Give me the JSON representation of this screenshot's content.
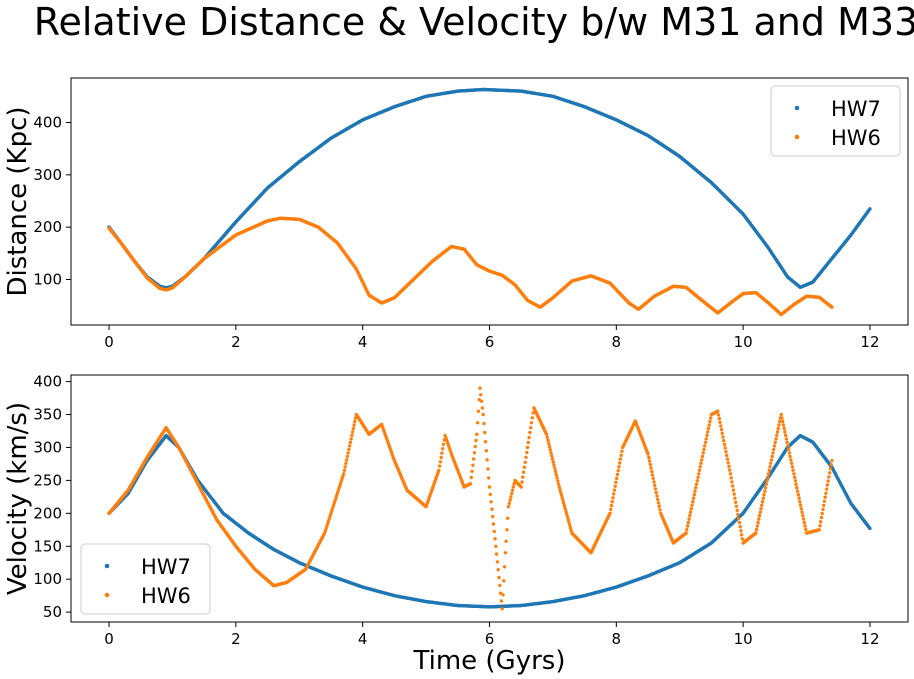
{
  "title": "Relative Distance & Velocity b/w M31 and M33",
  "colors": {
    "HW7": "#1f77b4",
    "HW6": "#ff7f0e"
  },
  "chart_data": [
    {
      "type": "scatter",
      "ylabel": "Distance (Kpc)",
      "xlabel": "",
      "xlim": [
        -0.6,
        12.6
      ],
      "ylim": [
        13,
        485
      ],
      "xticks": [
        "0",
        "2",
        "4",
        "6",
        "8",
        "10",
        "12"
      ],
      "yticks": [
        "100",
        "200",
        "300",
        "400"
      ],
      "legend_position": "top-right",
      "series": [
        {
          "name": "HW7",
          "points": [
            [
              0.0,
              200
            ],
            [
              0.2,
              168
            ],
            [
              0.4,
              135
            ],
            [
              0.6,
              105
            ],
            [
              0.8,
              87
            ],
            [
              0.9,
              84
            ],
            [
              1.0,
              87
            ],
            [
              1.2,
              105
            ],
            [
              1.5,
              140
            ],
            [
              2.0,
              210
            ],
            [
              2.5,
              275
            ],
            [
              3.0,
              325
            ],
            [
              3.5,
              370
            ],
            [
              4.0,
              405
            ],
            [
              4.5,
              430
            ],
            [
              5.0,
              450
            ],
            [
              5.5,
              460
            ],
            [
              5.9,
              463
            ],
            [
              6.5,
              460
            ],
            [
              7.0,
              450
            ],
            [
              7.5,
              430
            ],
            [
              8.0,
              405
            ],
            [
              8.5,
              375
            ],
            [
              9.0,
              335
            ],
            [
              9.5,
              285
            ],
            [
              10.0,
              225
            ],
            [
              10.4,
              160
            ],
            [
              10.7,
              105
            ],
            [
              10.9,
              85
            ],
            [
              11.1,
              95
            ],
            [
              11.4,
              140
            ],
            [
              11.7,
              185
            ],
            [
              12.0,
              235
            ]
          ]
        },
        {
          "name": "HW6",
          "points": [
            [
              0.0,
              198
            ],
            [
              0.2,
              168
            ],
            [
              0.4,
              135
            ],
            [
              0.6,
              103
            ],
            [
              0.8,
              83
            ],
            [
              0.9,
              80
            ],
            [
              1.0,
              84
            ],
            [
              1.2,
              105
            ],
            [
              1.5,
              140
            ],
            [
              2.0,
              185
            ],
            [
              2.5,
              212
            ],
            [
              2.7,
              217
            ],
            [
              3.0,
              215
            ],
            [
              3.3,
              200
            ],
            [
              3.6,
              170
            ],
            [
              3.9,
              120
            ],
            [
              4.1,
              70
            ],
            [
              4.3,
              55
            ],
            [
              4.5,
              65
            ],
            [
              4.8,
              100
            ],
            [
              5.1,
              135
            ],
            [
              5.4,
              163
            ],
            [
              5.6,
              158
            ],
            [
              5.8,
              128
            ],
            [
              6.0,
              116
            ],
            [
              6.2,
              108
            ],
            [
              6.4,
              90
            ],
            [
              6.6,
              60
            ],
            [
              6.8,
              47
            ],
            [
              7.0,
              65
            ],
            [
              7.3,
              97
            ],
            [
              7.6,
              107
            ],
            [
              7.9,
              93
            ],
            [
              8.2,
              55
            ],
            [
              8.35,
              43
            ],
            [
              8.6,
              68
            ],
            [
              8.9,
              87
            ],
            [
              9.1,
              85
            ],
            [
              9.3,
              65
            ],
            [
              9.6,
              36
            ],
            [
              9.8,
              55
            ],
            [
              10.0,
              73
            ],
            [
              10.2,
              75
            ],
            [
              10.4,
              55
            ],
            [
              10.6,
              33
            ],
            [
              10.8,
              52
            ],
            [
              11.0,
              68
            ],
            [
              11.2,
              66
            ],
            [
              11.4,
              47
            ]
          ]
        }
      ]
    },
    {
      "type": "scatter",
      "ylabel": "Velocity (km/s)",
      "xlabel": "Time (Gyrs)",
      "xlim": [
        -0.6,
        12.6
      ],
      "ylim": [
        35,
        410
      ],
      "xticks": [
        "0",
        "2",
        "4",
        "6",
        "8",
        "10",
        "12"
      ],
      "yticks": [
        "50",
        "100",
        "150",
        "200",
        "250",
        "300",
        "350",
        "400"
      ],
      "legend_position": "bottom-left",
      "series": [
        {
          "name": "HW7",
          "points": [
            [
              0.0,
              200
            ],
            [
              0.3,
              230
            ],
            [
              0.6,
              280
            ],
            [
              0.9,
              318
            ],
            [
              1.1,
              300
            ],
            [
              1.4,
              250
            ],
            [
              1.8,
              200
            ],
            [
              2.2,
              170
            ],
            [
              2.6,
              145
            ],
            [
              3.0,
              125
            ],
            [
              3.5,
              105
            ],
            [
              4.0,
              88
            ],
            [
              4.5,
              75
            ],
            [
              5.0,
              66
            ],
            [
              5.5,
              60
            ],
            [
              6.0,
              58
            ],
            [
              6.5,
              60
            ],
            [
              7.0,
              66
            ],
            [
              7.5,
              75
            ],
            [
              8.0,
              88
            ],
            [
              8.5,
              105
            ],
            [
              9.0,
              125
            ],
            [
              9.5,
              155
            ],
            [
              10.0,
              200
            ],
            [
              10.4,
              255
            ],
            [
              10.7,
              300
            ],
            [
              10.9,
              318
            ],
            [
              11.1,
              308
            ],
            [
              11.4,
              270
            ],
            [
              11.7,
              215
            ],
            [
              12.0,
              177
            ]
          ]
        },
        {
          "name": "HW6",
          "points": [
            [
              0.0,
              200
            ],
            [
              0.3,
              235
            ],
            [
              0.6,
              285
            ],
            [
              0.9,
              330
            ],
            [
              1.1,
              300
            ],
            [
              1.4,
              245
            ],
            [
              1.7,
              190
            ],
            [
              2.0,
              150
            ],
            [
              2.3,
              115
            ],
            [
              2.6,
              90
            ],
            [
              2.8,
              95
            ],
            [
              3.1,
              115
            ],
            [
              3.4,
              170
            ],
            [
              3.7,
              260
            ],
            [
              3.9,
              350
            ],
            [
              4.1,
              320
            ],
            [
              4.3,
              335
            ],
            [
              4.5,
              280
            ],
            [
              4.7,
              235
            ],
            [
              5.0,
              210
            ],
            [
              5.2,
              265
            ],
            [
              5.3,
              318
            ],
            [
              5.4,
              290
            ],
            [
              5.6,
              240
            ],
            [
              5.7,
              245
            ],
            [
              5.8,
              320
            ],
            [
              5.85,
              390
            ],
            [
              5.9,
              350
            ],
            [
              6.0,
              240
            ],
            [
              6.1,
              150
            ],
            [
              6.2,
              55
            ],
            [
              6.25,
              140
            ],
            [
              6.3,
              210
            ],
            [
              6.4,
              250
            ],
            [
              6.5,
              240
            ],
            [
              6.6,
              300
            ],
            [
              6.7,
              360
            ],
            [
              6.9,
              320
            ],
            [
              7.1,
              240
            ],
            [
              7.3,
              170
            ],
            [
              7.6,
              140
            ],
            [
              7.9,
              200
            ],
            [
              8.1,
              300
            ],
            [
              8.3,
              340
            ],
            [
              8.5,
              290
            ],
            [
              8.7,
              200
            ],
            [
              8.9,
              155
            ],
            [
              9.1,
              170
            ],
            [
              9.3,
              260
            ],
            [
              9.5,
              350
            ],
            [
              9.6,
              355
            ],
            [
              9.8,
              260
            ],
            [
              10.0,
              155
            ],
            [
              10.2,
              170
            ],
            [
              10.4,
              260
            ],
            [
              10.6,
              350
            ],
            [
              10.8,
              260
            ],
            [
              11.0,
              170
            ],
            [
              11.2,
              175
            ],
            [
              11.4,
              280
            ]
          ]
        }
      ]
    }
  ]
}
